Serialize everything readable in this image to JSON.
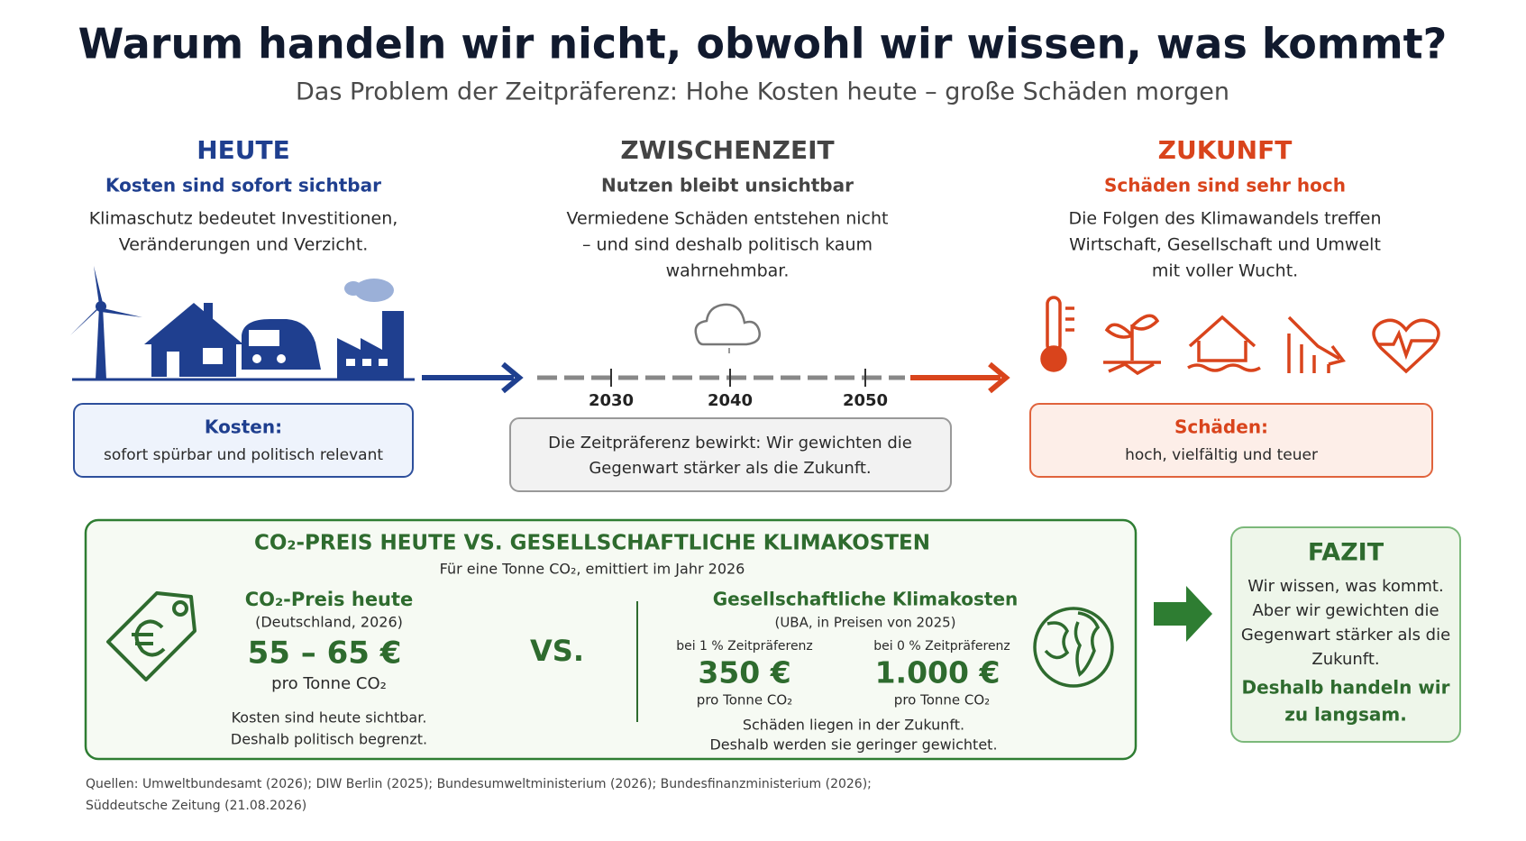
{
  "header": {
    "title": "Warum handeln wir nicht, obwohl wir wissen, was kommt?",
    "subtitle": "Das Problem der Zeitpräferenz: Hohe Kosten heute – große Schäden morgen"
  },
  "columns": [
    {
      "title": "HEUTE",
      "subtitle": "Kosten sind sofort sichtbar",
      "text": [
        "Klimaschutz bedeutet Investitionen,",
        "Veränderungen und Verzicht."
      ],
      "box": {
        "title": "Kosten:",
        "text": "sofort spürbar und politisch relevant"
      }
    },
    {
      "title": "ZWISCHENZEIT",
      "subtitle": "Nutzen bleibt unsichtbar",
      "text": [
        "Vermiedene Schäden entstehen nicht",
        "– und sind deshalb politisch kaum",
        "wahrnehmbar."
      ],
      "box": {
        "text": [
          "Die Zeitpräferenz bewirkt: Wir gewichten die",
          "Gegenwart stärker als die Zukunft."
        ]
      }
    },
    {
      "title": "ZUKUNFT",
      "subtitle": "Schäden sind sehr hoch",
      "text": [
        "Die Folgen des Klimawandels treffen",
        "Wirtschaft, Gesellschaft und Umwelt",
        "mit voller Wucht."
      ],
      "box": {
        "title": "Schäden:",
        "text": "hoch, vielfältig und teuer"
      }
    }
  ],
  "timeline": {
    "years": [
      "2030",
      "2040",
      "2050"
    ]
  },
  "comparison": {
    "title": "CO₂-PREIS HEUTE VS. GESELLSCHAFTLICHE KLIMAKOSTEN",
    "subtitle": "Für eine Tonne CO₂, emittiert im Jahr 2026",
    "left": {
      "title": "CO₂-Preis heute",
      "note": "(Deutschland, 2026)",
      "price": "55 – 65 €",
      "unit": "pro Tonne CO₂",
      "text": [
        "Kosten sind heute sichtbar.",
        "Deshalb politisch begrenzt."
      ]
    },
    "vs": "VS.",
    "right": {
      "title": "Gesellschaftliche Klimakosten",
      "note": "(UBA, in Preisen von 2025)",
      "items": [
        {
          "label": "bei 1 % Zeitpräferenz",
          "price": "350 €",
          "unit": "pro Tonne CO₂"
        },
        {
          "label": "bei 0 % Zeitpräferenz",
          "price": "1.000 €",
          "unit": "pro Tonne CO₂"
        }
      ],
      "text": [
        "Schäden liegen in der Zukunft.",
        "Deshalb werden sie geringer gewichtet."
      ]
    }
  },
  "conclusion": {
    "title": "FAZIT",
    "text": [
      "Wir wissen, was kommt.",
      "Aber wir gewichten die",
      "Gegenwart stärker als die",
      "Zukunft."
    ],
    "emphasis": [
      "Deshalb handeln wir",
      "zu langsam."
    ]
  },
  "sources": [
    "Quellen: Umweltbundesamt (2026); DIW Berlin (2025); Bundesumweltministerium (2026); Bundesfinanzministerium (2026);",
    "Süddeutsche Zeitung (21.08.2026)"
  ]
}
